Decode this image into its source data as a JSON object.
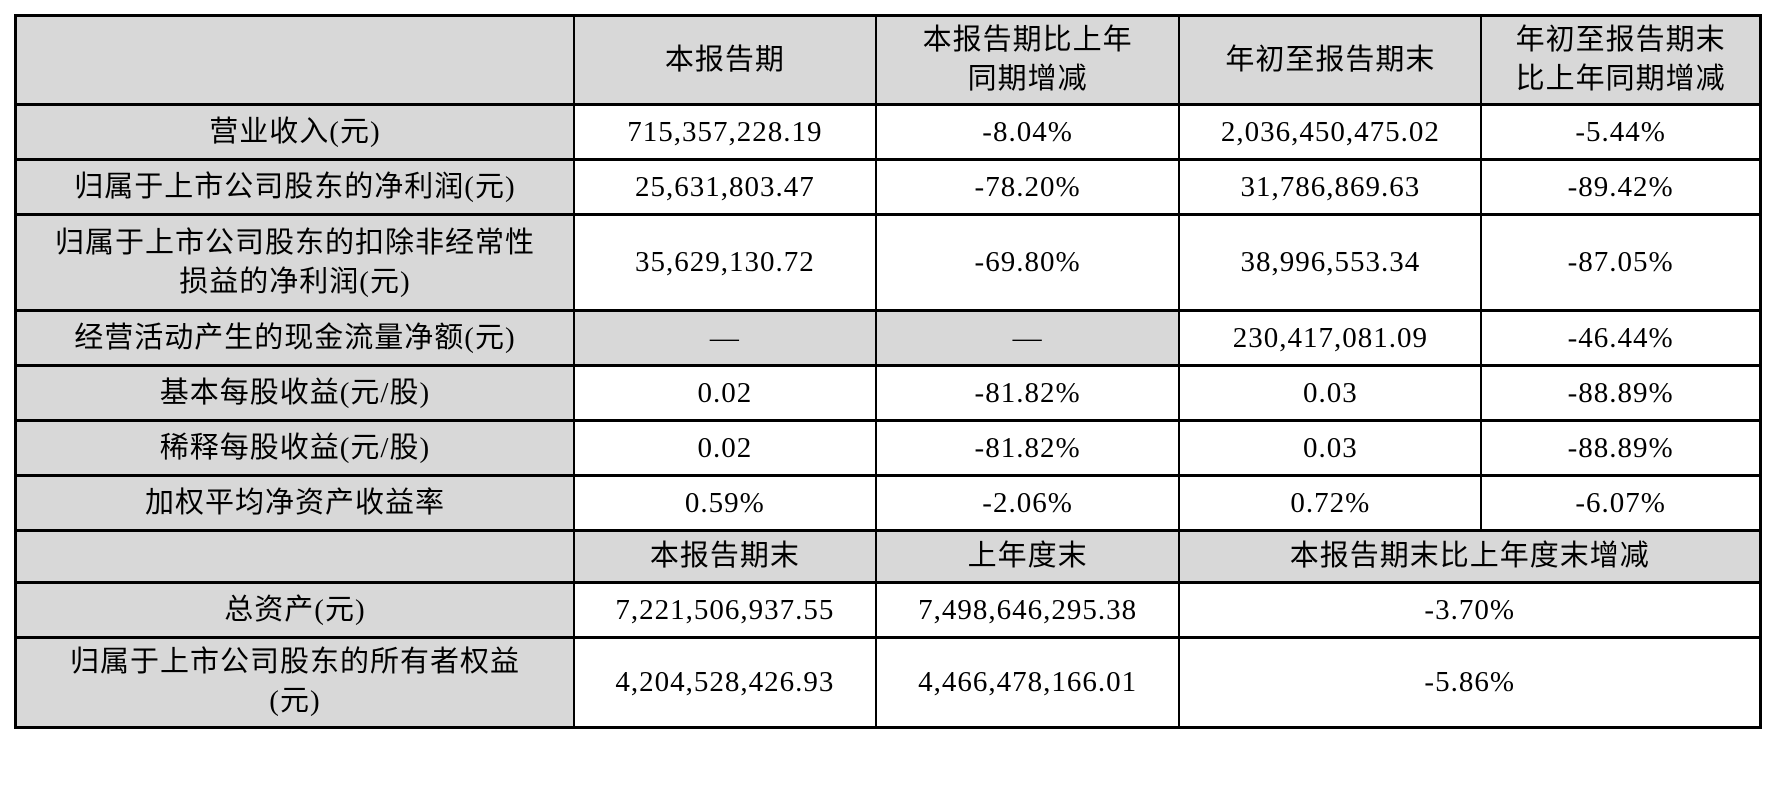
{
  "colors": {
    "shade_bg": "#d8d8d8",
    "cell_bg": "#ffffff",
    "border": "#000000",
    "text": "#000000"
  },
  "section1": {
    "header": {
      "corner": "",
      "col_current": "本报告期",
      "col_current_yoy": "本报告期比上年\n同期增减",
      "col_ytd": "年初至报告期末",
      "col_ytd_yoy": "年初至报告期末\n比上年同期增减"
    },
    "rows": [
      {
        "label": "营业收入(元)",
        "current": "715,357,228.19",
        "current_yoy": "-8.04%",
        "ytd": "2,036,450,475.02",
        "ytd_yoy": "-5.44%"
      },
      {
        "label": "归属于上市公司股东的净利润(元)",
        "current": "25,631,803.47",
        "current_yoy": "-78.20%",
        "ytd": "31,786,869.63",
        "ytd_yoy": "-89.42%"
      },
      {
        "label": "归属于上市公司股东的扣除非经常性\n损益的净利润(元)",
        "current": "35,629,130.72",
        "current_yoy": "-69.80%",
        "ytd": "38,996,553.34",
        "ytd_yoy": "-87.05%"
      },
      {
        "label": "经营活动产生的现金流量净额(元)",
        "current": "—",
        "current_yoy": "—",
        "ytd": "230,417,081.09",
        "ytd_yoy": "-46.44%"
      },
      {
        "label": "基本每股收益(元/股)",
        "current": "0.02",
        "current_yoy": "-81.82%",
        "ytd": "0.03",
        "ytd_yoy": "-88.89%"
      },
      {
        "label": "稀释每股收益(元/股)",
        "current": "0.02",
        "current_yoy": "-81.82%",
        "ytd": "0.03",
        "ytd_yoy": "-88.89%"
      },
      {
        "label": "加权平均净资产收益率",
        "current": "0.59%",
        "current_yoy": "-2.06%",
        "ytd": "0.72%",
        "ytd_yoy": "-6.07%"
      }
    ]
  },
  "section2": {
    "header": {
      "corner": "",
      "col_period_end": "本报告期末",
      "col_prev_year_end": "上年度末",
      "col_change": "本报告期末比上年度末增减"
    },
    "rows": [
      {
        "label": "总资产(元)",
        "period_end": "7,221,506,937.55",
        "prev_year_end": "7,498,646,295.38",
        "change": "-3.70%"
      },
      {
        "label": "归属于上市公司股东的所有者权益\n(元)",
        "period_end": "4,204,528,426.93",
        "prev_year_end": "4,466,478,166.01",
        "change": "-5.86%"
      }
    ]
  }
}
